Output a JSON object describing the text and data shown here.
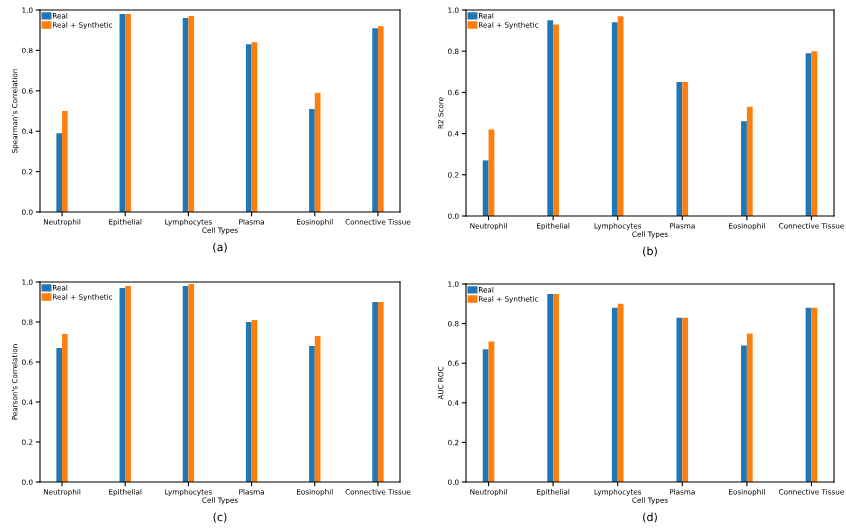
{
  "chart_data": [
    {
      "type": "bar",
      "ylabel": "Spearman's Correlation",
      "xlabel": "Cell Types",
      "annotations": [
        "(a)"
      ],
      "categories": [
        "Neutrophil",
        "Epithelial",
        "Lymphocytes",
        "Plasma",
        "Eosinophil",
        "Connective Tissue"
      ],
      "ylim": [
        0,
        1
      ],
      "yticks": [
        {
          "value": 0,
          "label": "0.0"
        },
        {
          "value": 0.2,
          "label": "0.2"
        },
        {
          "value": 0.4,
          "label": "0.4"
        },
        {
          "value": 0.6,
          "label": "0.6"
        },
        {
          "value": 0.8,
          "label": "0.8"
        },
        {
          "value": 1,
          "label": "1.0"
        }
      ],
      "legend": "top left",
      "grid": false,
      "series": [
        {
          "name": "Real",
          "color": "#1f77b4",
          "values": [
            0.39,
            0.98,
            0.96,
            0.83,
            0.51,
            0.91
          ]
        },
        {
          "name": "Real + Synthetic",
          "color": "#ff7f0e",
          "values": [
            0.5,
            0.98,
            0.97,
            0.84,
            0.59,
            0.92
          ]
        }
      ]
    },
    {
      "type": "bar",
      "ylabel": "R2 Score",
      "xlabel": "Cell Types",
      "annotations": [
        "(b)"
      ],
      "categories": [
        "Neutrophil",
        "Epithelial",
        "Lymphocytes",
        "Plasma",
        "Eosinophil",
        "Connective Tissue"
      ],
      "ylim": [
        0,
        1
      ],
      "yticks": [
        {
          "value": 0,
          "label": "0.0"
        },
        {
          "value": 0.2,
          "label": "0.2"
        },
        {
          "value": 0.4,
          "label": "0.4"
        },
        {
          "value": 0.6,
          "label": "0.6"
        },
        {
          "value": 0.8,
          "label": "0.8"
        },
        {
          "value": 1,
          "label": "1.0"
        }
      ],
      "legend": "top left",
      "grid": false,
      "series": [
        {
          "name": "Real",
          "color": "#1f77b4",
          "values": [
            0.27,
            0.95,
            0.94,
            0.65,
            0.46,
            0.79
          ]
        },
        {
          "name": "Real + Synthetic",
          "color": "#ff7f0e",
          "values": [
            0.42,
            0.93,
            0.97,
            0.65,
            0.53,
            0.8
          ]
        }
      ]
    },
    {
      "type": "bar",
      "ylabel": "Pearson's Correlation",
      "xlabel": "Cell Types",
      "annotations": [
        "(c)"
      ],
      "categories": [
        "Neutrophil",
        "Epithelial",
        "Lymphocytes",
        "Plasma",
        "Eosinophil",
        "Connective Tissue"
      ],
      "ylim": [
        0,
        1
      ],
      "yticks": [
        {
          "value": 0,
          "label": "0.0"
        },
        {
          "value": 0.2,
          "label": "0.2"
        },
        {
          "value": 0.4,
          "label": "0.4"
        },
        {
          "value": 0.6,
          "label": "0.6"
        },
        {
          "value": 0.8,
          "label": "0.8"
        },
        {
          "value": 1,
          "label": "1.0"
        }
      ],
      "legend": "top left",
      "grid": false,
      "series": [
        {
          "name": "Real",
          "color": "#1f77b4",
          "values": [
            0.67,
            0.97,
            0.98,
            0.8,
            0.68,
            0.9
          ]
        },
        {
          "name": "Real + Synthetic",
          "color": "#ff7f0e",
          "values": [
            0.74,
            0.98,
            0.99,
            0.81,
            0.73,
            0.9
          ]
        }
      ]
    },
    {
      "type": "bar",
      "ylabel": "AUC ROC",
      "xlabel": "Cell Types",
      "annotations": [
        "(d)"
      ],
      "categories": [
        "Neutrophil",
        "Epithelial",
        "Lymphocytes",
        "Plasma",
        "Eosinophil",
        "Connective Tissue"
      ],
      "ylim": [
        0,
        1
      ],
      "yticks": [
        {
          "value": 0,
          "label": "0.0"
        },
        {
          "value": 0.2,
          "label": "0.2"
        },
        {
          "value": 0.4,
          "label": "0.4"
        },
        {
          "value": 0.6,
          "label": "0.6"
        },
        {
          "value": 0.8,
          "label": "0.8"
        },
        {
          "value": 1,
          "label": "1.0"
        }
      ],
      "legend": "top left",
      "grid": false,
      "series": [
        {
          "name": "Real",
          "color": "#1f77b4",
          "values": [
            0.67,
            0.95,
            0.88,
            0.83,
            0.69,
            0.88
          ]
        },
        {
          "name": "Real + Synthetic",
          "color": "#ff7f0e",
          "values": [
            0.71,
            0.95,
            0.9,
            0.83,
            0.75,
            0.88
          ]
        }
      ]
    }
  ]
}
